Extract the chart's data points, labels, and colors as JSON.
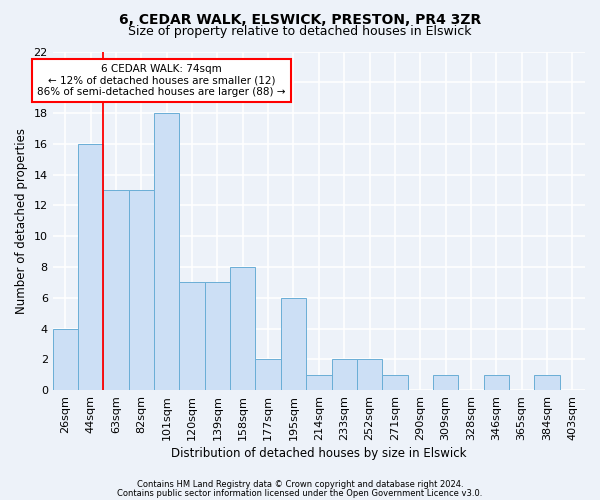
{
  "title1": "6, CEDAR WALK, ELSWICK, PRESTON, PR4 3ZR",
  "title2": "Size of property relative to detached houses in Elswick",
  "xlabel": "Distribution of detached houses by size in Elswick",
  "ylabel": "Number of detached properties",
  "categories": [
    "26sqm",
    "44sqm",
    "63sqm",
    "82sqm",
    "101sqm",
    "120sqm",
    "139sqm",
    "158sqm",
    "177sqm",
    "195sqm",
    "214sqm",
    "233sqm",
    "252sqm",
    "271sqm",
    "290sqm",
    "309sqm",
    "328sqm",
    "346sqm",
    "365sqm",
    "384sqm",
    "403sqm"
  ],
  "values": [
    4,
    16,
    13,
    13,
    18,
    7,
    7,
    8,
    2,
    6,
    1,
    2,
    2,
    1,
    0,
    1,
    0,
    1,
    0,
    1,
    0
  ],
  "bar_color": "#ccdff5",
  "bar_edge_color": "#6aaed6",
  "red_line_x": 1.5,
  "annotation_text": "6 CEDAR WALK: 74sqm\n← 12% of detached houses are smaller (12)\n86% of semi-detached houses are larger (88) →",
  "annotation_box_color": "white",
  "annotation_box_edge": "red",
  "ylim": [
    0,
    22
  ],
  "yticks": [
    0,
    2,
    4,
    6,
    8,
    10,
    12,
    14,
    16,
    18,
    20,
    22
  ],
  "footer1": "Contains HM Land Registry data © Crown copyright and database right 2024.",
  "footer2": "Contains public sector information licensed under the Open Government Licence v3.0.",
  "bg_color": "#edf2f9",
  "grid_color": "#ffffff",
  "title1_fontsize": 10,
  "title2_fontsize": 9,
  "tick_fontsize": 8,
  "ylabel_fontsize": 8.5,
  "xlabel_fontsize": 8.5,
  "footer_fontsize": 6,
  "ann_fontsize": 7.5
}
